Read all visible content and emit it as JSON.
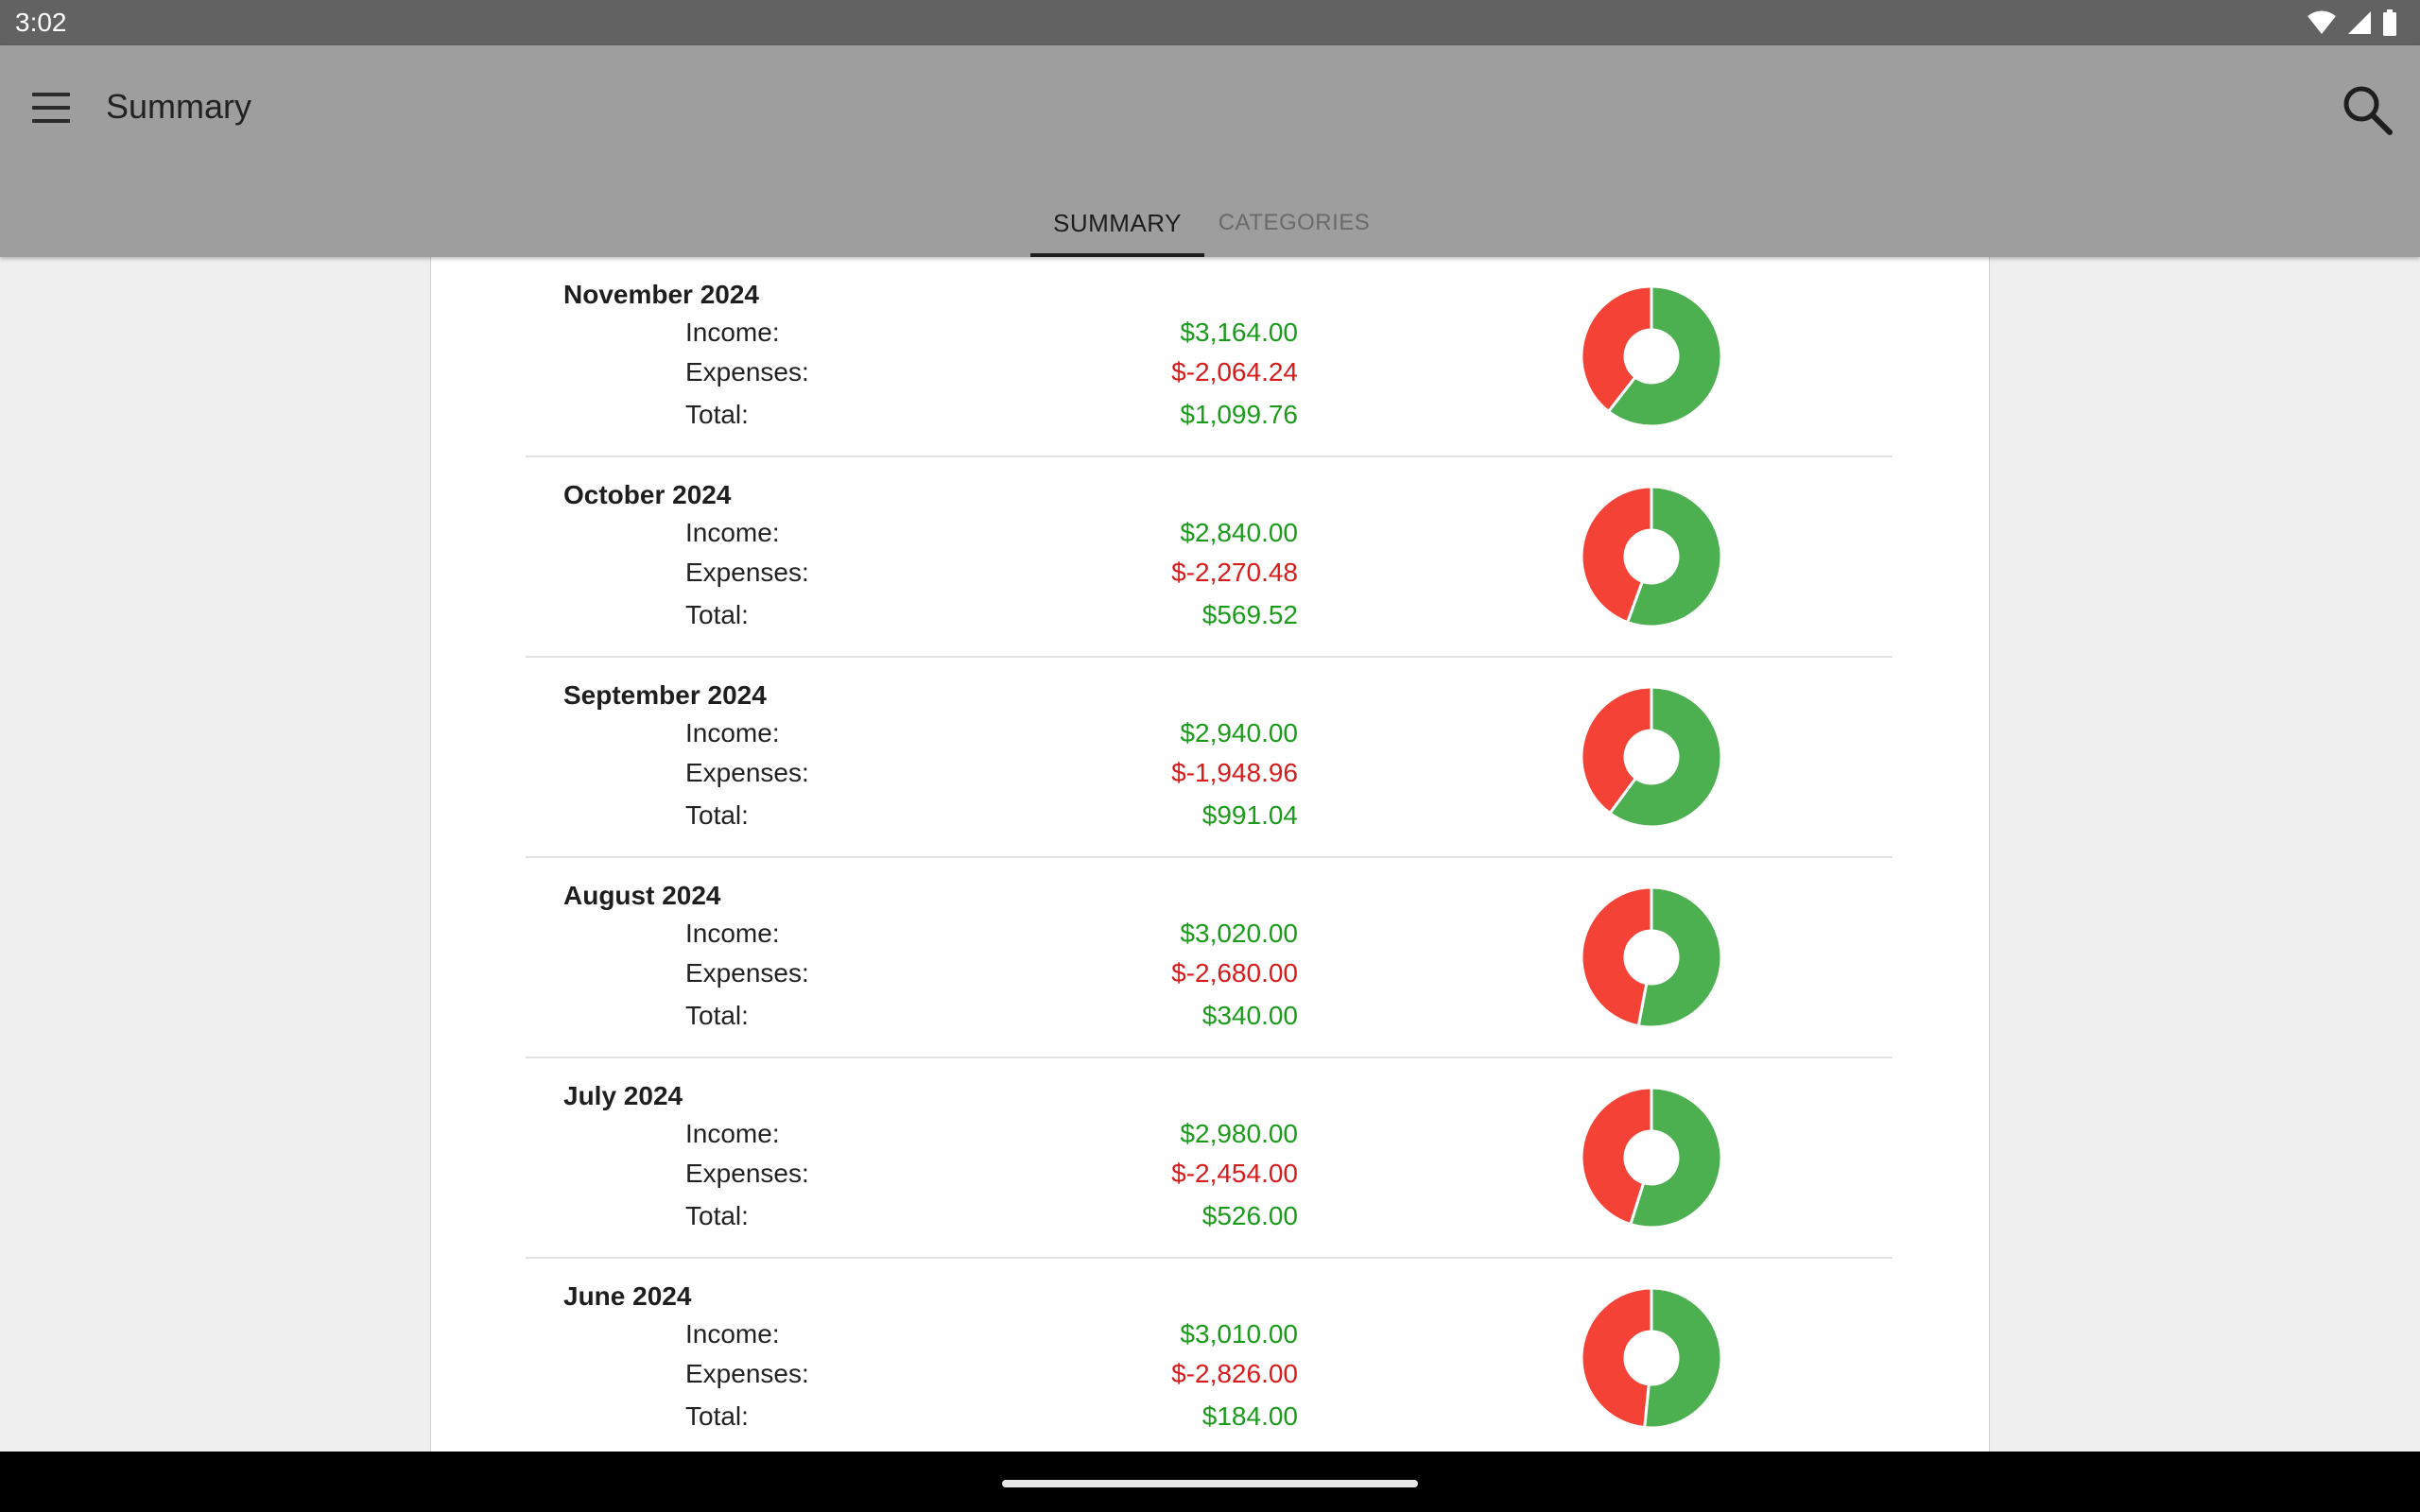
{
  "status_bar": {
    "time": "3:02",
    "icons": [
      "wifi-icon",
      "signal-icon",
      "battery-icon"
    ]
  },
  "app_bar": {
    "title": "Summary",
    "menu_icon": "hamburger-menu-icon",
    "search_icon": "search-icon"
  },
  "tabs": [
    {
      "label": "SUMMARY",
      "selected": true
    },
    {
      "label": "CATEGORIES",
      "selected": false
    }
  ],
  "colors": {
    "income": "#4caf50",
    "expenses": "#f44336",
    "positive_text": "#1b9a1b",
    "negative_text": "#d81b1b"
  },
  "labels": {
    "income": "Income:",
    "expenses": "Expenses:",
    "total": "Total:"
  },
  "months": [
    {
      "name": "November 2024",
      "income": "$3,164.00",
      "expenses": "$-2,064.24",
      "total": "$1,099.76",
      "income_value": 3164.0,
      "expense_value": 2064.24
    },
    {
      "name": "October 2024",
      "income": "$2,840.00",
      "expenses": "$-2,270.48",
      "total": "$569.52",
      "income_value": 2840.0,
      "expense_value": 2270.48
    },
    {
      "name": "September 2024",
      "income": "$2,940.00",
      "expenses": "$-1,948.96",
      "total": "$991.04",
      "income_value": 2940.0,
      "expense_value": 1948.96
    },
    {
      "name": "August 2024",
      "income": "$3,020.00",
      "expenses": "$-2,680.00",
      "total": "$340.00",
      "income_value": 3020.0,
      "expense_value": 2680.0
    },
    {
      "name": "July 2024",
      "income": "$2,980.00",
      "expenses": "$-2,454.00",
      "total": "$526.00",
      "income_value": 2980.0,
      "expense_value": 2454.0
    },
    {
      "name": "June 2024",
      "income": "$3,010.00",
      "expenses": "$-2,826.00",
      "total": "$184.00",
      "income_value": 3010.0,
      "expense_value": 2826.0
    }
  ]
}
